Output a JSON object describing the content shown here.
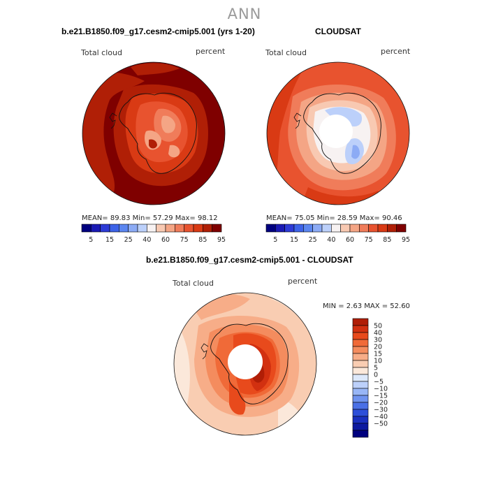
{
  "title": "ANN",
  "panels": {
    "model": {
      "title": "b.e21.B1850.f09_g17.cesm2-cmip5.001 (yrs 1-20)",
      "variable": "Total cloud",
      "units": "percent",
      "stats": "MEAN=  89.83   Min=  57.29   Max=  98.12"
    },
    "obs": {
      "title": "CLOUDSAT",
      "variable": "Total cloud",
      "units": "percent",
      "stats": "MEAN=  75.05   Min=  28.59   Max=  90.46"
    },
    "diff": {
      "title": "b.e21.B1850.f09_g17.cesm2-cmip5.001 - CLOUDSAT",
      "variable": "Total cloud",
      "units": "percent",
      "stats": "MIN =     2.63  MAX =   52.60"
    }
  },
  "colorbars": {
    "abs": {
      "colors": [
        "#00007f",
        "#1a1ab4",
        "#2d3bd6",
        "#3d63e8",
        "#5b86f0",
        "#8cabf5",
        "#bcd0fa",
        "#f7f2f2",
        "#f8c9b2",
        "#f4a585",
        "#f07c5a",
        "#e8532f",
        "#d93a14",
        "#b01f06",
        "#7f0000"
      ],
      "tick_labels": [
        "5",
        "15",
        "25",
        "40",
        "60",
        "75",
        "85",
        "95"
      ]
    },
    "diff": {
      "colors": [
        "#b01e06",
        "#d23010",
        "#e84a1c",
        "#f06a38",
        "#f48c5e",
        "#f7ad88",
        "#f9cdb2",
        "#fbe8da",
        "#dde8fa",
        "#bcd0fa",
        "#98b6f6",
        "#6f93ef",
        "#4a70e6",
        "#2d4fd9",
        "#1a30bf",
        "#0d1aa0",
        "#00007f"
      ],
      "labels": [
        "50",
        "40",
        "30",
        "20",
        "15",
        "10",
        "5",
        "0",
        "−5",
        "−10",
        "−15",
        "−20",
        "−30",
        "−40",
        "−50"
      ]
    }
  }
}
